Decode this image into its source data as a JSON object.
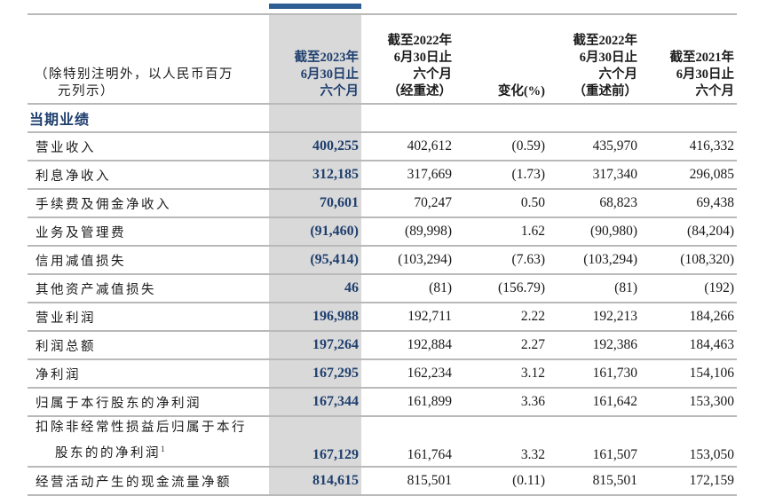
{
  "header": {
    "unit_note_line1": "（除特别注明外，以人民币百万",
    "unit_note_line2": "元列示）",
    "columns": [
      {
        "lines": [
          "截至2023年",
          "6月30日止",
          "六个月"
        ]
      },
      {
        "lines": [
          "截至2022年",
          "6月30日止",
          "六个月",
          "（经重述）"
        ]
      },
      {
        "lines": [
          "变化(%)"
        ]
      },
      {
        "lines": [
          "截至2022年",
          "6月30日止",
          "六个月",
          "（重述前）"
        ]
      },
      {
        "lines": [
          "截至2021年",
          "6月30日止",
          "六个月"
        ]
      }
    ]
  },
  "section": {
    "title": "当期业绩"
  },
  "rows": [
    {
      "label": "营业收入",
      "values": [
        "400,255",
        "402,612",
        "(0.59)",
        "435,970",
        "416,332"
      ]
    },
    {
      "label": "利息净收入",
      "values": [
        "312,185",
        "317,669",
        "(1.73)",
        "317,340",
        "296,085"
      ]
    },
    {
      "label": "手续费及佣金净收入",
      "values": [
        "70,601",
        "70,247",
        "0.50",
        "68,823",
        "69,438"
      ]
    },
    {
      "label": "业务及管理费",
      "values": [
        "(91,460)",
        "(89,998)",
        "1.62",
        "(90,980)",
        "(84,204)"
      ]
    },
    {
      "label": "信用减值损失",
      "values": [
        "(95,414)",
        "(103,294)",
        "(7.63)",
        "(103,294)",
        "(108,320)"
      ]
    },
    {
      "label": "其他资产减值损失",
      "values": [
        "46",
        "(81)",
        "(156.79)",
        "(81)",
        "(192)"
      ]
    },
    {
      "label": "营业利润",
      "values": [
        "196,988",
        "192,711",
        "2.22",
        "192,213",
        "184,266"
      ]
    },
    {
      "label": "利润总额",
      "values": [
        "197,264",
        "192,884",
        "2.27",
        "192,386",
        "184,463"
      ]
    },
    {
      "label": "净利润",
      "values": [
        "167,295",
        "162,234",
        "3.12",
        "161,730",
        "154,106"
      ]
    },
    {
      "label": "归属于本行股东的净利润",
      "values": [
        "167,344",
        "161,899",
        "3.36",
        "161,642",
        "153,300"
      ]
    },
    {
      "label_line1": "扣除非经常性损益后归属于本行",
      "label_line2": "股东的的净利润",
      "footnote": "1",
      "values": [
        "167,129",
        "161,764",
        "3.32",
        "161,507",
        "153,050"
      ]
    },
    {
      "label": "经营活动产生的现金流量净额",
      "values": [
        "814,615",
        "815,501",
        "(0.11)",
        "815,501",
        "172,159"
      ]
    }
  ],
  "colors": {
    "accent_bar": "#2e5e94",
    "highlight_column": "#d9d9d9",
    "highlight_text": "#1f3f6e",
    "rule": "#b9b9b9"
  }
}
